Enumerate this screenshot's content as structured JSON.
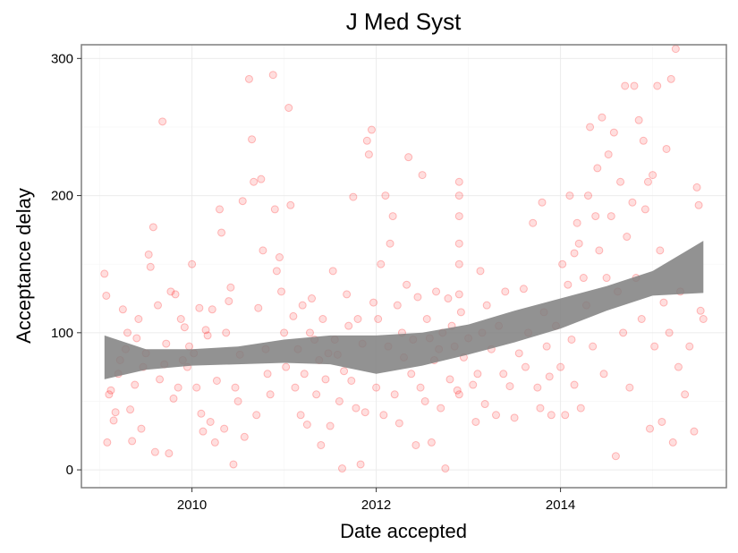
{
  "chart_data": {
    "type": "scatter",
    "title": "J Med Syst",
    "xlabel": "Date accepted",
    "ylabel": "Acceptance delay",
    "xlim": [
      2008.8,
      2015.8
    ],
    "ylim": [
      -13,
      310
    ],
    "x_ticks": [
      2010,
      2012,
      2014
    ],
    "x_tick_labels": [
      "2010",
      "2012",
      "2014"
    ],
    "y_ticks": [
      0,
      100,
      200,
      300
    ],
    "y_tick_labels": [
      "0",
      "100",
      "200",
      "300"
    ],
    "grid": true,
    "point_color": "#ff0000",
    "band_color": "#7f7f7f",
    "smooth_band": {
      "x": [
        2009.05,
        2009.5,
        2010.0,
        2010.5,
        2011.0,
        2011.5,
        2012.0,
        2012.5,
        2013.0,
        2013.5,
        2014.0,
        2014.5,
        2015.0,
        2015.55
      ],
      "lower": [
        66,
        73,
        76,
        77,
        78,
        77,
        70,
        76,
        84,
        93,
        103,
        116,
        127,
        129
      ],
      "upper": [
        98,
        88,
        88,
        90,
        95,
        98,
        98,
        100,
        106,
        116,
        125,
        134,
        145,
        167
      ]
    },
    "points": [
      [
        2009.05,
        143
      ],
      [
        2009.07,
        127
      ],
      [
        2009.08,
        20
      ],
      [
        2009.1,
        55
      ],
      [
        2009.12,
        58
      ],
      [
        2009.15,
        36
      ],
      [
        2009.17,
        42
      ],
      [
        2009.2,
        70
      ],
      [
        2009.22,
        80
      ],
      [
        2009.25,
        117
      ],
      [
        2009.28,
        88
      ],
      [
        2009.3,
        100
      ],
      [
        2009.33,
        44
      ],
      [
        2009.35,
        21
      ],
      [
        2009.38,
        62
      ],
      [
        2009.4,
        96
      ],
      [
        2009.42,
        110
      ],
      [
        2009.45,
        30
      ],
      [
        2009.47,
        75
      ],
      [
        2009.5,
        85
      ],
      [
        2009.53,
        157
      ],
      [
        2009.55,
        148
      ],
      [
        2009.58,
        177
      ],
      [
        2009.6,
        13
      ],
      [
        2009.63,
        120
      ],
      [
        2009.65,
        66
      ],
      [
        2009.68,
        254
      ],
      [
        2009.7,
        77
      ],
      [
        2009.72,
        92
      ],
      [
        2009.75,
        12
      ],
      [
        2009.77,
        130
      ],
      [
        2009.8,
        52
      ],
      [
        2009.82,
        128
      ],
      [
        2009.85,
        60
      ],
      [
        2009.88,
        110
      ],
      [
        2009.9,
        80
      ],
      [
        2009.92,
        104
      ],
      [
        2009.95,
        75
      ],
      [
        2009.97,
        90
      ],
      [
        2010.0,
        150
      ],
      [
        2010.02,
        85
      ],
      [
        2010.05,
        60
      ],
      [
        2010.08,
        118
      ],
      [
        2010.1,
        41
      ],
      [
        2010.12,
        28
      ],
      [
        2010.15,
        102
      ],
      [
        2010.17,
        98
      ],
      [
        2010.2,
        35
      ],
      [
        2010.22,
        117
      ],
      [
        2010.25,
        20
      ],
      [
        2010.27,
        65
      ],
      [
        2010.3,
        190
      ],
      [
        2010.32,
        173
      ],
      [
        2010.35,
        30
      ],
      [
        2010.37,
        100
      ],
      [
        2010.4,
        123
      ],
      [
        2010.42,
        133
      ],
      [
        2010.45,
        4
      ],
      [
        2010.47,
        60
      ],
      [
        2010.5,
        50
      ],
      [
        2010.52,
        84
      ],
      [
        2010.55,
        196
      ],
      [
        2010.57,
        24
      ],
      [
        2010.6,
        310
      ],
      [
        2010.62,
        285
      ],
      [
        2010.65,
        241
      ],
      [
        2010.67,
        210
      ],
      [
        2010.7,
        40
      ],
      [
        2010.72,
        118
      ],
      [
        2010.75,
        212
      ],
      [
        2010.77,
        160
      ],
      [
        2010.8,
        88
      ],
      [
        2010.82,
        70
      ],
      [
        2010.85,
        55
      ],
      [
        2010.88,
        288
      ],
      [
        2010.9,
        190
      ],
      [
        2010.92,
        145
      ],
      [
        2010.95,
        155
      ],
      [
        2010.97,
        130
      ],
      [
        2011.0,
        100
      ],
      [
        2011.02,
        75
      ],
      [
        2011.05,
        264
      ],
      [
        2011.07,
        193
      ],
      [
        2011.1,
        112
      ],
      [
        2011.12,
        60
      ],
      [
        2011.15,
        88
      ],
      [
        2011.18,
        40
      ],
      [
        2011.2,
        120
      ],
      [
        2011.22,
        70
      ],
      [
        2011.25,
        33
      ],
      [
        2011.28,
        100
      ],
      [
        2011.3,
        125
      ],
      [
        2011.33,
        95
      ],
      [
        2011.35,
        55
      ],
      [
        2011.38,
        80
      ],
      [
        2011.4,
        18
      ],
      [
        2011.42,
        110
      ],
      [
        2011.45,
        66
      ],
      [
        2011.48,
        85
      ],
      [
        2011.5,
        32
      ],
      [
        2011.53,
        145
      ],
      [
        2011.55,
        95
      ],
      [
        2011.58,
        84
      ],
      [
        2011.6,
        50
      ],
      [
        2011.63,
        1
      ],
      [
        2011.65,
        72
      ],
      [
        2011.68,
        128
      ],
      [
        2011.7,
        105
      ],
      [
        2011.73,
        65
      ],
      [
        2011.75,
        199
      ],
      [
        2011.78,
        45
      ],
      [
        2011.8,
        110
      ],
      [
        2011.83,
        4
      ],
      [
        2011.85,
        92
      ],
      [
        2011.88,
        42
      ],
      [
        2011.9,
        240
      ],
      [
        2011.92,
        230
      ],
      [
        2011.95,
        248
      ],
      [
        2011.97,
        122
      ],
      [
        2012.0,
        60
      ],
      [
        2012.02,
        110
      ],
      [
        2012.05,
        150
      ],
      [
        2012.08,
        40
      ],
      [
        2012.1,
        200
      ],
      [
        2012.13,
        90
      ],
      [
        2012.15,
        165
      ],
      [
        2012.18,
        185
      ],
      [
        2012.2,
        55
      ],
      [
        2012.23,
        120
      ],
      [
        2012.25,
        34
      ],
      [
        2012.28,
        100
      ],
      [
        2012.3,
        82
      ],
      [
        2012.33,
        135
      ],
      [
        2012.35,
        228
      ],
      [
        2012.38,
        70
      ],
      [
        2012.4,
        95
      ],
      [
        2012.43,
        18
      ],
      [
        2012.45,
        126
      ],
      [
        2012.48,
        60
      ],
      [
        2012.5,
        215
      ],
      [
        2012.53,
        50
      ],
      [
        2012.55,
        110
      ],
      [
        2012.58,
        96
      ],
      [
        2012.6,
        20
      ],
      [
        2012.63,
        80
      ],
      [
        2012.65,
        130
      ],
      [
        2012.68,
        88
      ],
      [
        2012.7,
        45
      ],
      [
        2012.72,
        100
      ],
      [
        2012.75,
        1
      ],
      [
        2012.78,
        125
      ],
      [
        2012.8,
        66
      ],
      [
        2012.82,
        105
      ],
      [
        2012.85,
        90
      ],
      [
        2012.88,
        58
      ],
      [
        2012.9,
        210
      ],
      [
        2012.9,
        200
      ],
      [
        2012.9,
        185
      ],
      [
        2012.9,
        165
      ],
      [
        2012.9,
        150
      ],
      [
        2012.9,
        128
      ],
      [
        2012.9,
        55
      ],
      [
        2012.92,
        115
      ],
      [
        2012.95,
        82
      ],
      [
        2013.0,
        96
      ],
      [
        2013.05,
        62
      ],
      [
        2013.08,
        35
      ],
      [
        2013.1,
        70
      ],
      [
        2013.13,
        145
      ],
      [
        2013.15,
        100
      ],
      [
        2013.18,
        48
      ],
      [
        2013.2,
        120
      ],
      [
        2013.25,
        88
      ],
      [
        2013.3,
        40
      ],
      [
        2013.33,
        105
      ],
      [
        2013.38,
        70
      ],
      [
        2013.4,
        130
      ],
      [
        2013.45,
        61
      ],
      [
        2013.5,
        38
      ],
      [
        2013.55,
        85
      ],
      [
        2013.6,
        132
      ],
      [
        2013.62,
        75
      ],
      [
        2013.65,
        100
      ],
      [
        2013.7,
        180
      ],
      [
        2013.75,
        60
      ],
      [
        2013.78,
        45
      ],
      [
        2013.8,
        195
      ],
      [
        2013.82,
        115
      ],
      [
        2013.85,
        90
      ],
      [
        2013.88,
        68
      ],
      [
        2013.9,
        40
      ],
      [
        2013.95,
        105
      ],
      [
        2014.0,
        75
      ],
      [
        2014.02,
        150
      ],
      [
        2014.05,
        40
      ],
      [
        2014.08,
        135
      ],
      [
        2014.1,
        200
      ],
      [
        2014.12,
        95
      ],
      [
        2014.15,
        62
      ],
      [
        2014.15,
        158
      ],
      [
        2014.18,
        180
      ],
      [
        2014.2,
        165
      ],
      [
        2014.22,
        45
      ],
      [
        2014.25,
        140
      ],
      [
        2014.28,
        120
      ],
      [
        2014.3,
        200
      ],
      [
        2014.32,
        250
      ],
      [
        2014.35,
        90
      ],
      [
        2014.38,
        185
      ],
      [
        2014.4,
        220
      ],
      [
        2014.42,
        160
      ],
      [
        2014.45,
        257
      ],
      [
        2014.47,
        70
      ],
      [
        2014.5,
        140
      ],
      [
        2014.52,
        230
      ],
      [
        2014.55,
        185
      ],
      [
        2014.58,
        246
      ],
      [
        2014.6,
        10
      ],
      [
        2014.62,
        130
      ],
      [
        2014.65,
        210
      ],
      [
        2014.68,
        100
      ],
      [
        2014.7,
        280
      ],
      [
        2014.72,
        170
      ],
      [
        2014.75,
        60
      ],
      [
        2014.78,
        195
      ],
      [
        2014.8,
        280
      ],
      [
        2014.82,
        140
      ],
      [
        2014.85,
        255
      ],
      [
        2014.88,
        110
      ],
      [
        2014.9,
        240
      ],
      [
        2014.92,
        190
      ],
      [
        2014.95,
        210
      ],
      [
        2014.97,
        30
      ],
      [
        2015.0,
        215
      ],
      [
        2015.02,
        90
      ],
      [
        2015.05,
        280
      ],
      [
        2015.08,
        160
      ],
      [
        2015.1,
        35
      ],
      [
        2015.12,
        122
      ],
      [
        2015.15,
        234
      ],
      [
        2015.18,
        100
      ],
      [
        2015.2,
        285
      ],
      [
        2015.22,
        20
      ],
      [
        2015.25,
        307
      ],
      [
        2015.28,
        75
      ],
      [
        2015.3,
        130
      ],
      [
        2015.35,
        55
      ],
      [
        2015.4,
        90
      ],
      [
        2015.45,
        28
      ],
      [
        2015.48,
        206
      ],
      [
        2015.5,
        193
      ],
      [
        2015.52,
        116
      ],
      [
        2015.55,
        110
      ]
    ]
  }
}
